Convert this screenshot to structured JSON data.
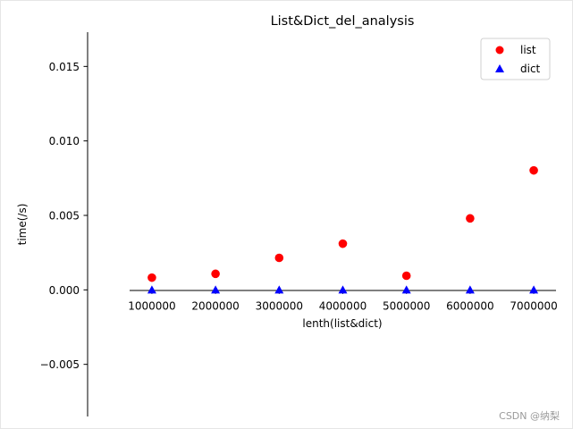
{
  "chart_data": {
    "type": "scatter",
    "title": "List&Dict_del_analysis",
    "xlabel": "lenth(list&dict)",
    "ylabel": "time(/s)",
    "x": [
      1000000,
      2000000,
      3000000,
      4000000,
      5000000,
      6000000,
      7000000
    ],
    "x_tick_labels": [
      "1000000",
      "2000000",
      "3000000",
      "4000000",
      "5000000",
      "6000000",
      "7000000"
    ],
    "y_ticks": [
      -0.005,
      0.0,
      0.005,
      0.01,
      0.015
    ],
    "y_tick_labels": [
      "−0.005",
      "0.000",
      "0.005",
      "0.010",
      "0.015"
    ],
    "xlim": [
      650000,
      7350000
    ],
    "ylim": [
      -0.0085,
      0.0173
    ],
    "series": [
      {
        "name": "list",
        "marker": "circle",
        "color": "#ff0000",
        "values": [
          0.00082,
          0.00108,
          0.00215,
          0.0031,
          0.00095,
          0.0048,
          0.00802
        ]
      },
      {
        "name": "dict",
        "marker": "triangle",
        "color": "#0000ff",
        "values": [
          0.0,
          0.0,
          0.0,
          0.0,
          0.0,
          0.0,
          0.0
        ]
      }
    ],
    "legend_position": "top-right",
    "grid": false
  },
  "watermark": "CSDN @纳梨"
}
